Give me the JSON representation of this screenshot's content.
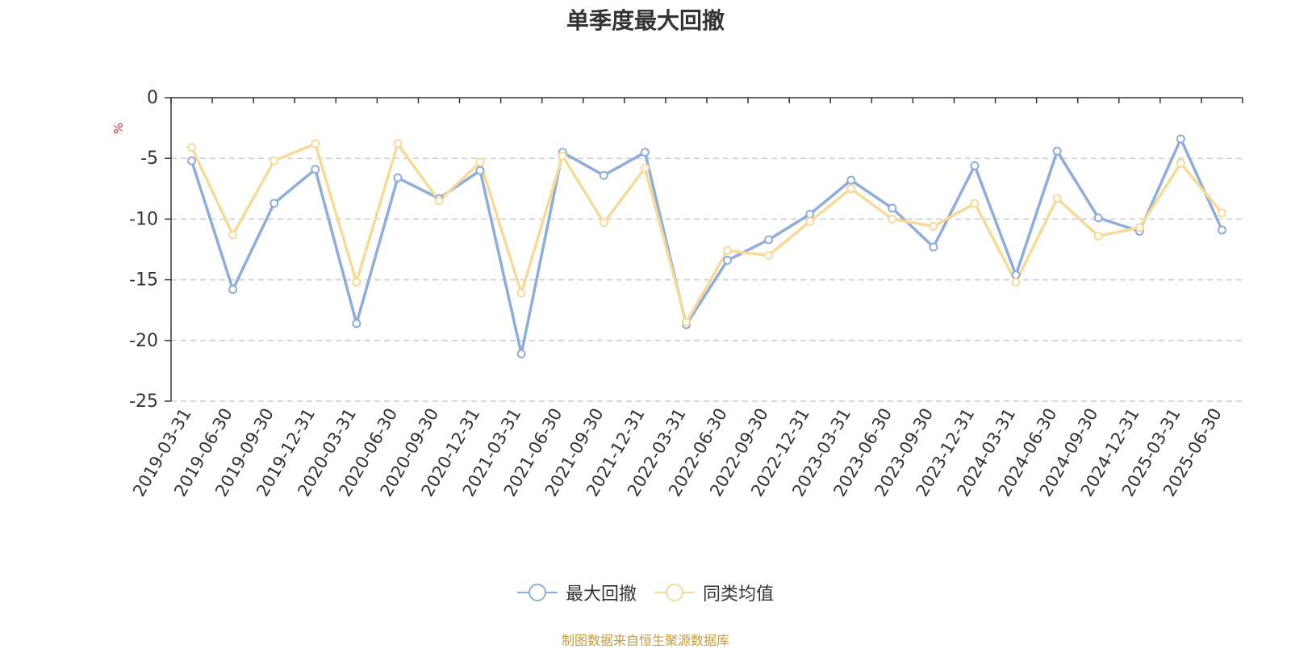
{
  "chart_data": {
    "type": "line",
    "title": "单季度最大回撤",
    "ylabel": "%",
    "ylim": [
      -25,
      0
    ],
    "yticks": [
      "0",
      "-5",
      "-10",
      "-15",
      "-20",
      "-25"
    ],
    "grid": true,
    "legend_placement": "bottom",
    "categories": [
      "2019-03-31",
      "2019-06-30",
      "2019-09-30",
      "2019-12-31",
      "2020-03-31",
      "2020-06-30",
      "2020-09-30",
      "2020-12-31",
      "2021-03-31",
      "2021-06-30",
      "2021-09-30",
      "2021-12-31",
      "2022-03-31",
      "2022-06-30",
      "2022-09-30",
      "2022-12-31",
      "2023-03-31",
      "2023-06-30",
      "2023-09-30",
      "2023-12-31",
      "2024-03-31",
      "2024-06-30",
      "2024-09-30",
      "2024-12-31",
      "2025-03-31",
      "2025-06-30"
    ],
    "series": [
      {
        "name": "最大回撤",
        "color": "#8eadd9",
        "values": [
          -5.2,
          -15.8,
          -8.7,
          -5.9,
          -18.6,
          -6.6,
          -8.3,
          -6.0,
          -21.1,
          -4.5,
          -6.4,
          -4.5,
          -18.7,
          -13.4,
          -11.7,
          -9.6,
          -6.8,
          -9.1,
          -12.3,
          -5.6,
          -14.6,
          -4.4,
          -9.9,
          -11.0,
          -3.4,
          -10.9
        ]
      },
      {
        "name": "同类均值",
        "color": "#f7d99a",
        "values": [
          -4.1,
          -11.3,
          -5.2,
          -3.8,
          -15.2,
          -3.8,
          -8.5,
          -5.3,
          -16.1,
          -4.8,
          -10.3,
          -5.8,
          -18.5,
          -12.6,
          -13.0,
          -10.2,
          -7.5,
          -10.0,
          -10.6,
          -8.7,
          -15.2,
          -8.3,
          -11.4,
          -10.7,
          -5.4,
          -9.5
        ]
      }
    ],
    "source_text": "制图数据来自恒生聚源数据库",
    "colors": {
      "unit": "#e0252b",
      "source": "#c89b3c",
      "axis": "#333333",
      "grid": "#cccccc"
    }
  }
}
